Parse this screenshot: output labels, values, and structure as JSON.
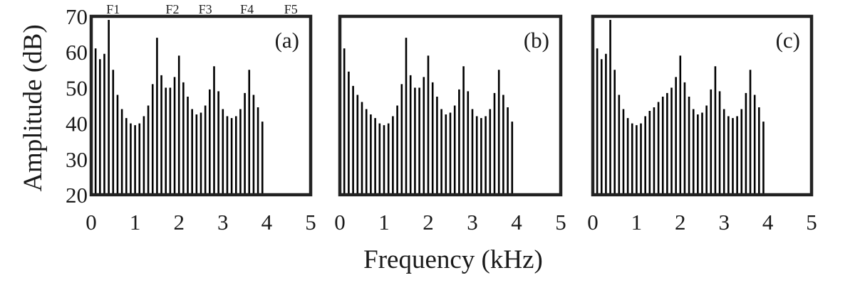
{
  "chart_data": {
    "type": "bar",
    "xlabel": "Frequency (kHz)",
    "ylabel": "Amplitude (dB)",
    "xlim": [
      0,
      5
    ],
    "ylim": [
      20,
      70
    ],
    "x_ticks": [
      "0",
      "1",
      "2",
      "3",
      "4",
      "5"
    ],
    "y_ticks": [
      "20",
      "30",
      "40",
      "50",
      "60",
      "70"
    ],
    "grid": false,
    "harmonic_spacing_khz": 0.1,
    "formant_labels": [
      {
        "label": "F1",
        "x": 0.5
      },
      {
        "label": "F2",
        "x": 1.85
      },
      {
        "label": "F3",
        "x": 2.6
      },
      {
        "label": "F4",
        "x": 3.55
      },
      {
        "label": "F5",
        "x": 4.55
      }
    ],
    "panels": [
      {
        "label": "(a)",
        "values": [
          61,
          58,
          59.5,
          69,
          55,
          48,
          44,
          41.5,
          40,
          39.5,
          40,
          42,
          45,
          51,
          64,
          53.5,
          50,
          50,
          53,
          59,
          51.5,
          47.5,
          44,
          42.5,
          43,
          45,
          49.5,
          56,
          49,
          44,
          42,
          41.5,
          42,
          44,
          48.5,
          55,
          48,
          44.5,
          40.5
        ]
      },
      {
        "label": "(b)",
        "values": [
          61,
          54.5,
          50.5,
          48,
          46,
          44,
          42.5,
          41.5,
          40,
          39.5,
          40,
          42,
          45,
          51,
          64,
          53.5,
          50,
          50,
          53,
          59,
          51.5,
          47.5,
          44,
          42.5,
          43,
          45,
          49.5,
          56,
          49,
          44,
          42,
          41.5,
          42,
          44,
          48.5,
          55,
          48,
          44.5,
          40.5
        ]
      },
      {
        "label": "(c)",
        "values": [
          61,
          58,
          59.5,
          69,
          55,
          48,
          44,
          41.5,
          40,
          39.5,
          40,
          42,
          43.5,
          44.5,
          46,
          47.5,
          48.5,
          50,
          53,
          59,
          51.5,
          47.5,
          44,
          42.5,
          43,
          45,
          49.5,
          56,
          49,
          44,
          42,
          41.5,
          42,
          44,
          48.5,
          55,
          48,
          44.5,
          40.5
        ]
      }
    ]
  }
}
